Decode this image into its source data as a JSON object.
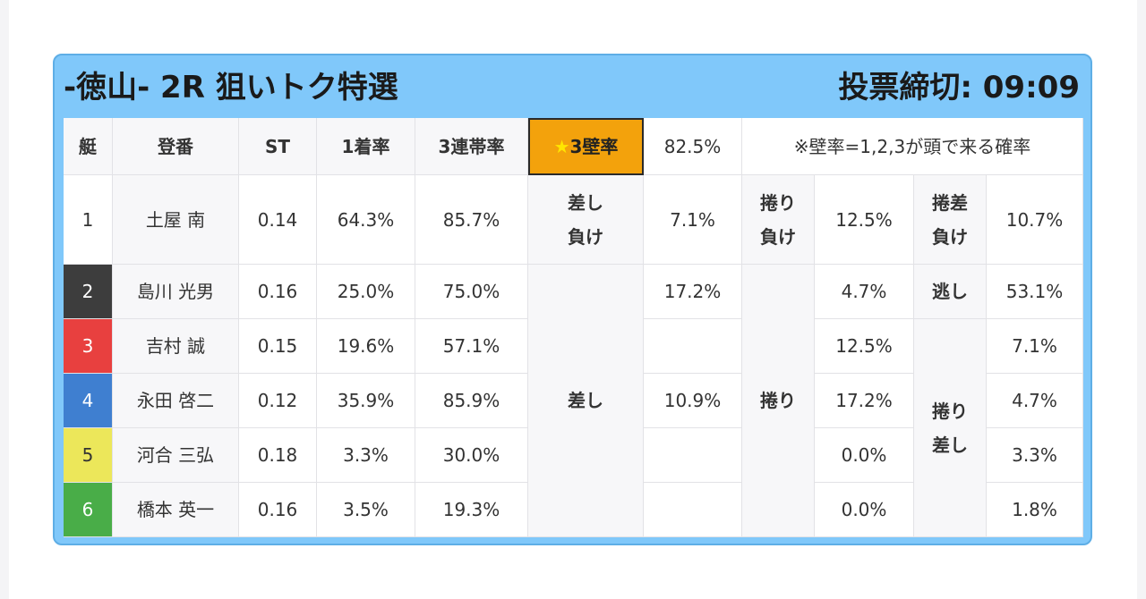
{
  "title": "-徳山- 2R 狙いトク特選",
  "deadline": "投票締切: 09:09",
  "headers": {
    "boat": "艇",
    "name": "登番",
    "st": "ST",
    "first_rate": "1着率",
    "trio_rate": "3連帯率",
    "wall_star": "★",
    "wall_label": "3壁率",
    "wall_value": "82.5%",
    "wall_note": "※壁率=1,2,3が頭で来る確率"
  },
  "colors": {
    "boat1": "#ffffff",
    "boat2": "#3d3d3d",
    "boat3": "#e8403f",
    "boat4": "#3f7fd0",
    "boat5": "#ece75a",
    "boat6": "#49ad48",
    "wall_highlight": "#f3a20c",
    "card": "#80c8fa"
  },
  "racers": [
    {
      "boat": "1",
      "name": "土屋 南",
      "st": "0.14",
      "first": "64.3%",
      "trio": "85.7%"
    },
    {
      "boat": "2",
      "name": "島川 光男",
      "st": "0.16",
      "first": "25.0%",
      "trio": "75.0%"
    },
    {
      "boat": "3",
      "name": "吉村 誠",
      "st": "0.15",
      "first": "19.6%",
      "trio": "57.1%"
    },
    {
      "boat": "4",
      "name": "永田 啓二",
      "st": "0.12",
      "first": "35.9%",
      "trio": "85.9%"
    },
    {
      "boat": "5",
      "name": "河合 三弘",
      "st": "0.18",
      "first": "3.3%",
      "trio": "30.0%"
    },
    {
      "boat": "6",
      "name": "橋本 英一",
      "st": "0.16",
      "first": "3.5%",
      "trio": "19.3%"
    }
  ],
  "patterns": {
    "sashi_make_line1": "差し",
    "sashi_make_line2": "負け",
    "sashi_make_value": "7.1%",
    "makuri_make_line1": "捲り",
    "makuri_make_line2": "負け",
    "makuri_make_value": "12.5%",
    "makurisashi_make_line1": "捲差",
    "makurisashi_make_line2": "負け",
    "makurisashi_make_value": "10.7%",
    "sashi": "差し",
    "sashi_values": [
      "17.2%",
      "",
      "10.9%",
      "",
      ""
    ],
    "makuri": "捲り",
    "makuri_values": [
      "4.7%",
      "12.5%",
      "17.2%",
      "0.0%",
      "0.0%"
    ],
    "nige": "逃し",
    "nige_value": "53.1%",
    "makurisashi_line1": "捲り",
    "makurisashi_line2": "差し",
    "makurisashi_values": [
      "7.1%",
      "4.7%",
      "3.3%",
      "1.8%"
    ]
  }
}
